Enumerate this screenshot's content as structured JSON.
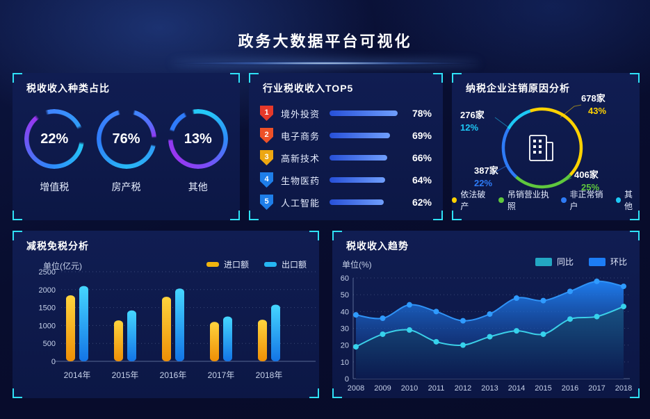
{
  "page_title": "政务大数据平台可视化",
  "colors": {
    "accent_cyan": "#2fe1f7",
    "panel_bg": "#0d1848",
    "page_bg": "#070b28",
    "muted_text": "#c7d2ea"
  },
  "chart_data": [
    {
      "id": "tax_type_share",
      "type": "pie",
      "variant": "gradient-rings",
      "title": "税收收入种类占比",
      "items": [
        {
          "label": "增值税",
          "value": 22,
          "percent": "22%"
        },
        {
          "label": "房产税",
          "value": 76,
          "percent": "76%"
        },
        {
          "label": "其他",
          "value": 13,
          "percent": "13%"
        }
      ]
    },
    {
      "id": "industry_top5",
      "type": "bar",
      "variant": "ranked-list",
      "title": "行业税收收入TOP5",
      "max_value": 78,
      "items": [
        {
          "rank": "1",
          "label": "境外投资",
          "value": 78,
          "percent": "78%",
          "badge_color": "#e6392a"
        },
        {
          "rank": "2",
          "label": "电子商务",
          "value": 69,
          "percent": "69%",
          "badge_color": "#ee5128"
        },
        {
          "rank": "3",
          "label": "高新技术",
          "value": 66,
          "percent": "66%",
          "badge_color": "#eda711"
        },
        {
          "rank": "4",
          "label": "生物医药",
          "value": 64,
          "percent": "64%",
          "badge_color": "#1e7ee9"
        },
        {
          "rank": "5",
          "label": "人工智能",
          "value": 62,
          "percent": "62%",
          "badge_color": "#1e7ee9"
        }
      ]
    },
    {
      "id": "cancellation_reasons",
      "type": "pie",
      "variant": "donut",
      "title": "纳税企业注销原因分析",
      "center_icon": "building-icon",
      "slices": [
        {
          "label": "依法破产",
          "count": "678家",
          "percent": "43%",
          "value": 43,
          "color": "#ffd200"
        },
        {
          "label": "吊销营业执照",
          "count": "406家",
          "percent": "25%",
          "value": 25,
          "color": "#5fc73d"
        },
        {
          "label": "非正常销户",
          "count": "387家",
          "percent": "22%",
          "value": 22,
          "color": "#2e7bf6"
        },
        {
          "label": "其他",
          "count": "276家",
          "percent": "12%",
          "value": 12,
          "color": "#1dc8f5"
        }
      ]
    },
    {
      "id": "tax_reduction",
      "type": "bar",
      "title": "减税免税分析",
      "unit": "单位(亿元)",
      "categories": [
        "2014年",
        "2015年",
        "2016年",
        "2017年",
        "2018年"
      ],
      "series": [
        {
          "name": "进口额",
          "color": "#f0b40e",
          "values": [
            1840,
            1140,
            1800,
            1100,
            1160
          ]
        },
        {
          "name": "出口额",
          "color": "#25b6f2",
          "values": [
            2100,
            1420,
            2030,
            1250,
            1580
          ]
        }
      ],
      "yticks": [
        0,
        500,
        1000,
        1500,
        2000,
        2500
      ],
      "ylim": [
        0,
        2500
      ],
      "grid": "dotted",
      "legend_position": "top-right"
    },
    {
      "id": "revenue_trend",
      "type": "area",
      "title": "税收收入趋势",
      "unit": "单位(%)",
      "x": [
        "2008",
        "2009",
        "2010",
        "2011",
        "2012",
        "2013",
        "2014",
        "2015",
        "2016",
        "2017",
        "2018"
      ],
      "series": [
        {
          "name": "环比",
          "color": "#1d7df5",
          "values": [
            38,
            36,
            44,
            40,
            34.5,
            38.5,
            48,
            46.5,
            52,
            58,
            55
          ]
        },
        {
          "name": "同比",
          "color": "#23a7c3",
          "values": [
            19,
            26.5,
            29,
            22,
            20,
            25,
            28.5,
            26.5,
            35.5,
            37,
            43
          ]
        }
      ],
      "yticks": [
        0,
        10,
        20,
        30,
        40,
        50,
        60
      ],
      "ylim": [
        0,
        60
      ],
      "grid": "dotted",
      "legend_position": "top-right"
    }
  ]
}
